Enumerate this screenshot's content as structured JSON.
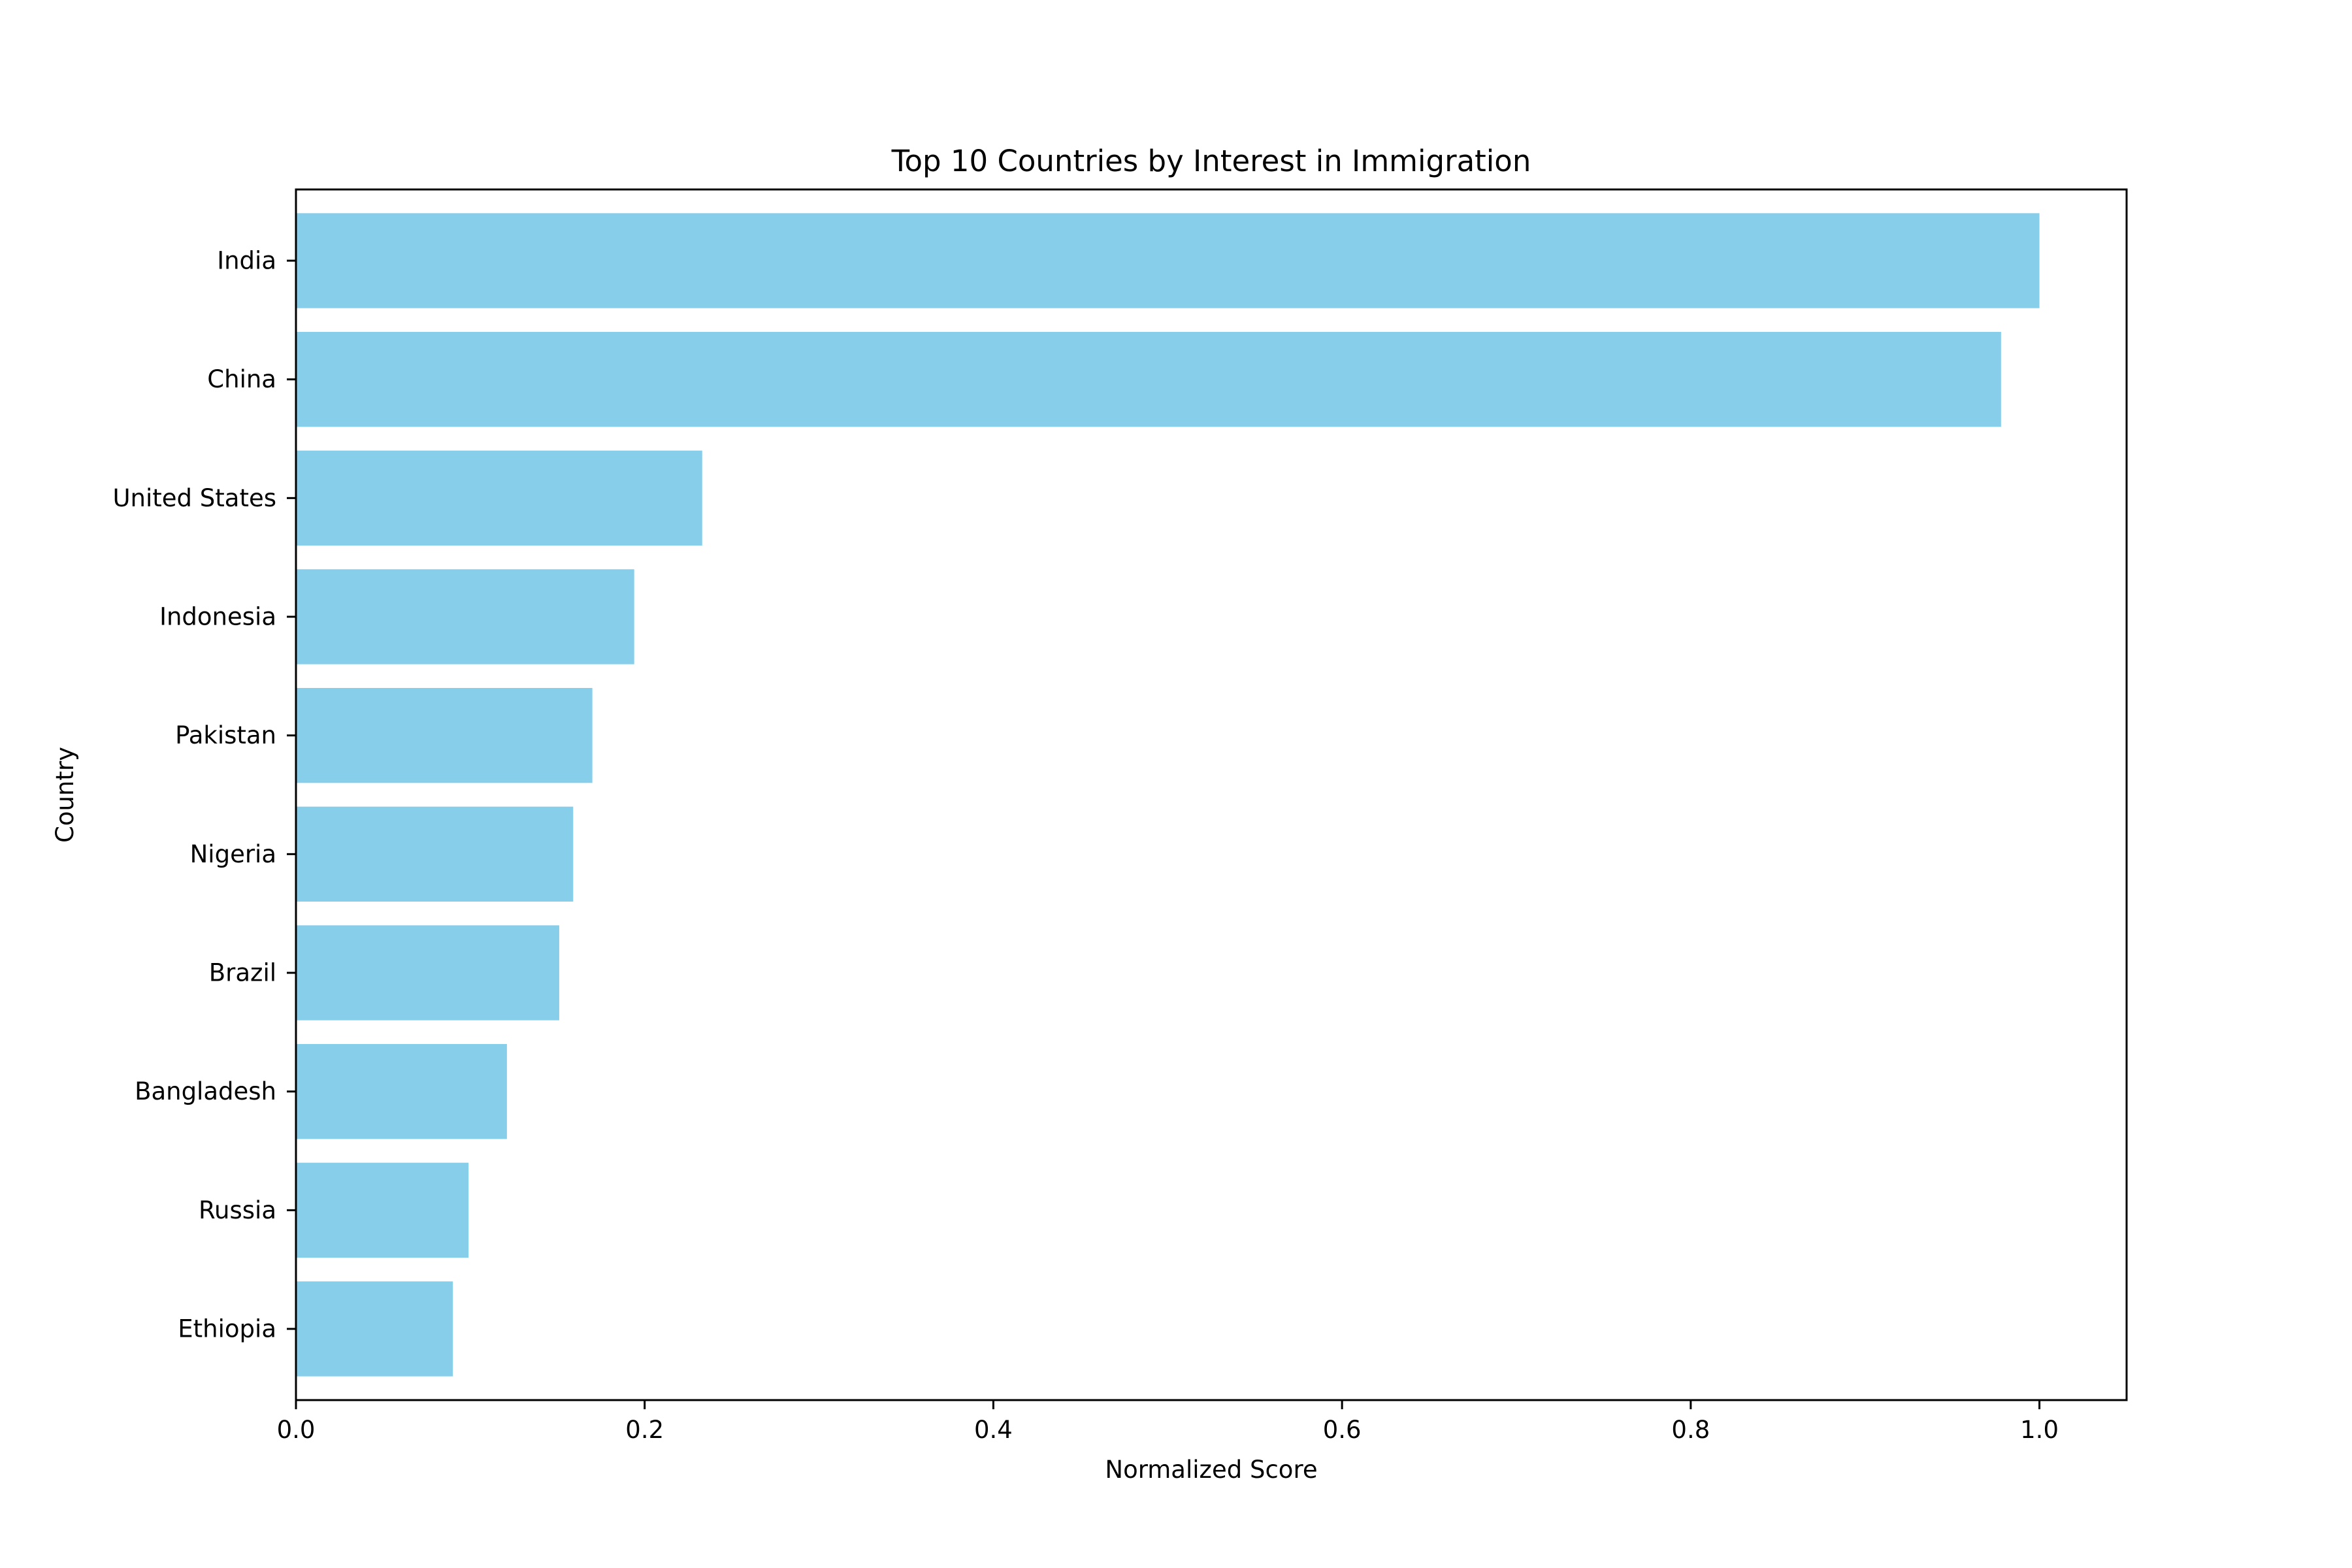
{
  "chart_data": {
    "type": "bar",
    "orientation": "horizontal",
    "title": "Top 10 Countries by Interest in Immigration",
    "xlabel": "Normalized Score",
    "ylabel": "Country",
    "categories": [
      "India",
      "China",
      "United States",
      "Indonesia",
      "Pakistan",
      "Nigeria",
      "Brazil",
      "Bangladesh",
      "Russia",
      "Ethiopia"
    ],
    "values": [
      1.0,
      0.978,
      0.233,
      0.194,
      0.17,
      0.159,
      0.151,
      0.121,
      0.099,
      0.09
    ],
    "xlim": [
      0,
      1.05
    ],
    "xticks": [
      0.0,
      0.2,
      0.4,
      0.6,
      0.8,
      1.0
    ],
    "xtick_labels": [
      "0.0",
      "0.2",
      "0.4",
      "0.6",
      "0.8",
      "1.0"
    ],
    "bar_color": "#87ceeb",
    "grid": false,
    "legend": "none"
  }
}
